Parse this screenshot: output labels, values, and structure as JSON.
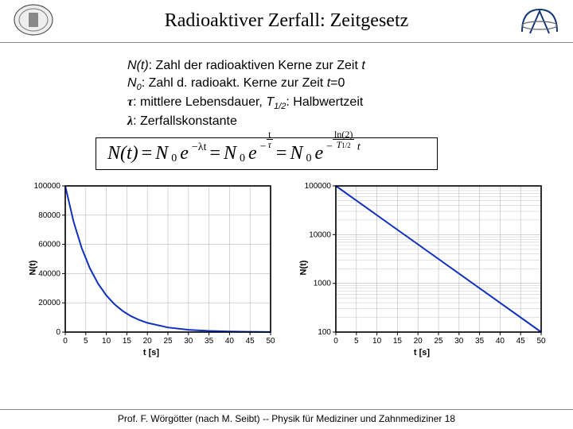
{
  "header": {
    "title": "Radioaktiver Zerfall: Zeitgesetz"
  },
  "definitions": {
    "line1_a": "N(t)",
    "line1_b": ": Zahl der radioaktiven Kerne zur Zeit ",
    "line1_c": "t",
    "line2_a": "N",
    "line2_sub": "0",
    "line2_b": ": Zahl d. radioakt. Kerne zur Zeit ",
    "line2_c": "t",
    "line2_d": "=0",
    "line3_a": "τ",
    "line3_b": ": mittlere Lebensdauer, ",
    "line3_c": "T",
    "line3_sub": "1/2",
    "line3_d": ": Halbwertzeit",
    "line4_a": "λ",
    "line4_b": ": Zerfallskonstante"
  },
  "formula": {
    "lhs": "N(t)",
    "eq": " = ",
    "n0": "N",
    "n0sub": "0",
    "e": "e",
    "exp1": "−λt",
    "exp2_num": "t",
    "exp2_den": "τ",
    "exp3_num": "ln(2)",
    "exp3_den": "T",
    "exp3_den_sub": "1/2",
    "exp3_tail": " t",
    "minus": "−"
  },
  "chart_left": {
    "type": "line",
    "xlabel": "t [s]",
    "ylabel": "N(t)",
    "xlim": [
      0,
      50
    ],
    "ylim": [
      0,
      100000
    ],
    "xticks": [
      0,
      5,
      10,
      15,
      20,
      25,
      30,
      35,
      40,
      45,
      50
    ],
    "yticks": [
      0,
      20000,
      40000,
      60000,
      80000,
      100000
    ],
    "line_color": "#1030c0",
    "line_width": 2,
    "grid_color": "#b8b8b8",
    "axis_color": "#000000",
    "background_color": "#ffffff",
    "tick_fontsize": 10,
    "label_fontsize": 11,
    "data_x": [
      0,
      2,
      4,
      6,
      8,
      10,
      12,
      14,
      16,
      18,
      20,
      25,
      30,
      35,
      40,
      45,
      50
    ],
    "data_y": [
      100000,
      75800,
      57500,
      43600,
      33100,
      25100,
      19000,
      14400,
      10900,
      8300,
      6300,
      3160,
      1580,
      794,
      398,
      200,
      100
    ]
  },
  "chart_right": {
    "type": "line-log",
    "xlabel": "t [s]",
    "ylabel": "N(t)",
    "xlim": [
      0,
      50
    ],
    "ylim": [
      100,
      100000
    ],
    "xticks": [
      0,
      5,
      10,
      15,
      20,
      25,
      30,
      35,
      40,
      45,
      50
    ],
    "yticks": [
      100,
      1000,
      10000,
      100000
    ],
    "line_color": "#1030c0",
    "line_width": 2,
    "grid_color": "#b8b8b8",
    "axis_color": "#000000",
    "background_color": "#ffffff",
    "tick_fontsize": 10,
    "label_fontsize": 11,
    "data_x": [
      0,
      50
    ],
    "data_y": [
      100000,
      100
    ]
  },
  "footer": {
    "text": "Prof. F. Wörgötter (nach M. Seibt) -- Physik für Mediziner und Zahnmediziner  18"
  },
  "colors": {
    "header_rule": "#888888",
    "text": "#000000"
  }
}
